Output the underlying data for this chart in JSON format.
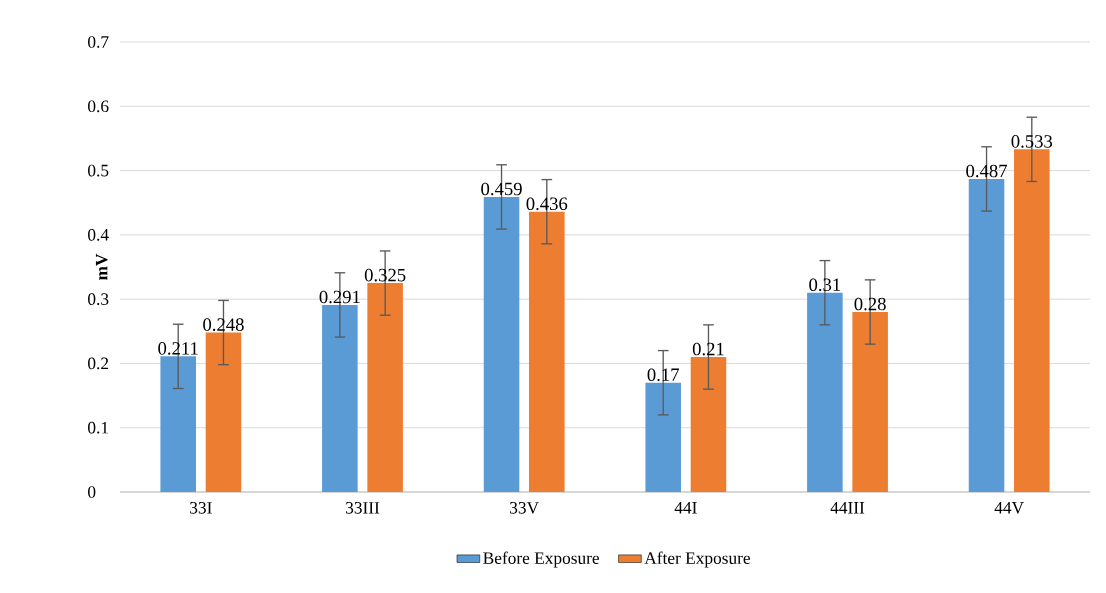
{
  "chart_data": {
    "type": "bar",
    "ylabel": "mV",
    "categories": [
      "33I",
      "33III",
      "33V",
      "44I",
      "44III",
      "44V"
    ],
    "series": [
      {
        "name": "Before Exposure",
        "color": "#5b9bd5",
        "values": [
          0.211,
          0.291,
          0.459,
          0.17,
          0.31,
          0.487
        ],
        "errors": [
          0.05,
          0.05,
          0.05,
          0.05,
          0.05,
          0.05
        ]
      },
      {
        "name": "After Exposure",
        "color": "#ed7d31",
        "values": [
          0.248,
          0.325,
          0.436,
          0.21,
          0.28,
          0.533
        ],
        "errors": [
          0.05,
          0.05,
          0.05,
          0.05,
          0.05,
          0.05
        ]
      }
    ],
    "ylim": [
      0,
      0.7
    ],
    "yticks": [
      0,
      0.1,
      0.2,
      0.3,
      0.4,
      0.5,
      0.6,
      0.7
    ],
    "grid": "y",
    "legend": "bottom",
    "data_labels": true
  }
}
